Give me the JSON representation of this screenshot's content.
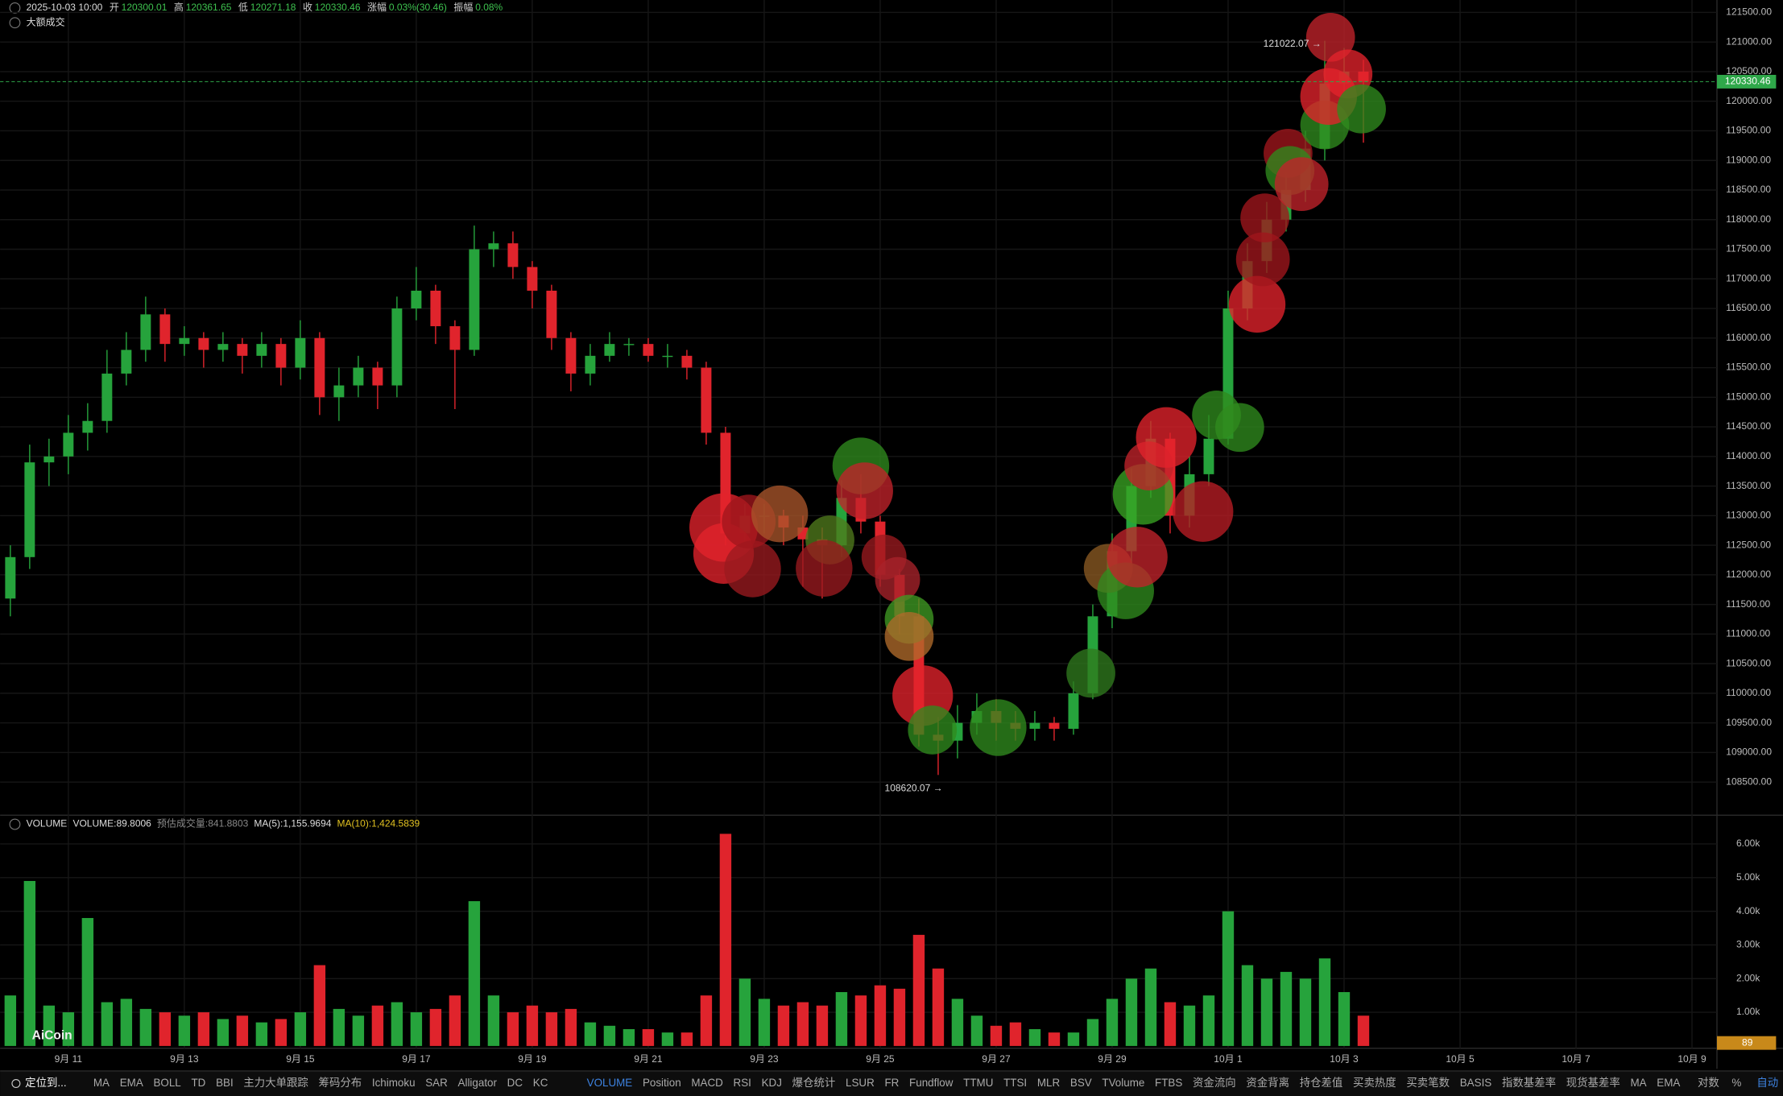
{
  "header": {
    "datetime": "2025-10-03 10:00",
    "fields": [
      {
        "label": "开",
        "value": "120300.01"
      },
      {
        "label": "高",
        "value": "120361.65"
      },
      {
        "label": "低",
        "value": "120271.18"
      },
      {
        "label": "收",
        "value": "120330.46"
      },
      {
        "label": "涨幅",
        "value": "0.03%(30.46)"
      },
      {
        "label": "振幅",
        "value": "0.08%"
      }
    ],
    "overlay": "大额成交"
  },
  "chart_data": [
    {
      "type": "candlestick",
      "open": [
        111600,
        112300,
        113900,
        114000,
        114400,
        114600,
        115400,
        115800,
        116400,
        115900,
        116000,
        115800,
        115900,
        115700,
        115900,
        115500,
        116000,
        115000,
        115200,
        115500,
        115200,
        116500,
        116800,
        116200,
        115800,
        117500,
        117600,
        117200,
        116800,
        116000,
        115400,
        115700,
        115900,
        115900,
        115700,
        115700,
        115500,
        114400,
        112700,
        113000,
        113000,
        112800,
        112600,
        112500,
        113300,
        112900,
        112000,
        111300,
        109300,
        109200,
        109500,
        109700,
        109500,
        109400,
        109500,
        109400,
        110000,
        111300,
        112400,
        113500,
        114300,
        113000,
        113700,
        114300,
        116500,
        117300,
        118000,
        118500,
        119200,
        120300,
        120500
      ],
      "high": [
        112500,
        114200,
        114300,
        114700,
        114900,
        115800,
        116100,
        116700,
        116500,
        116200,
        116100,
        116100,
        116000,
        116100,
        116000,
        116300,
        116100,
        115500,
        115700,
        115600,
        116700,
        117200,
        116900,
        116300,
        117900,
        117800,
        117800,
        117300,
        116900,
        116100,
        115900,
        116100,
        116000,
        116000,
        115900,
        115800,
        115600,
        114500,
        113200,
        113200,
        113100,
        113000,
        112800,
        113600,
        113700,
        113000,
        112100,
        111600,
        109600,
        109800,
        110000,
        109900,
        109700,
        109700,
        109600,
        110200,
        111500,
        112700,
        113800,
        114600,
        114400,
        114000,
        114700,
        116800,
        117600,
        118300,
        118800,
        119500,
        121022.07,
        120900,
        120700
      ],
      "low": [
        111300,
        112100,
        113500,
        113700,
        114100,
        114400,
        115200,
        115600,
        115600,
        115700,
        115500,
        115600,
        115400,
        115500,
        115200,
        115300,
        114700,
        114600,
        115000,
        114800,
        115000,
        116300,
        115900,
        114800,
        115700,
        117200,
        117000,
        116500,
        115800,
        115100,
        115200,
        115600,
        115700,
        115600,
        115500,
        115300,
        114200,
        112500,
        112400,
        112700,
        112500,
        111800,
        111600,
        112300,
        112700,
        111800,
        111000,
        109100,
        108620.07,
        108900,
        109300,
        109200,
        109200,
        109200,
        109200,
        109300,
        109900,
        111100,
        112200,
        113300,
        112700,
        112800,
        113500,
        114200,
        116300,
        117100,
        117800,
        118300,
        119000,
        120100,
        119300
      ],
      "close": [
        112300,
        113900,
        114000,
        114400,
        114600,
        115400,
        115800,
        116400,
        115900,
        116000,
        115800,
        115900,
        115700,
        115900,
        115500,
        116000,
        115000,
        115200,
        115500,
        115200,
        116500,
        116800,
        116200,
        115800,
        117500,
        117600,
        117200,
        116800,
        116000,
        115400,
        115700,
        115900,
        115900,
        115700,
        115700,
        115500,
        114400,
        112700,
        113000,
        113000,
        112800,
        112600,
        112500,
        113300,
        112900,
        112000,
        111300,
        109300,
        109200,
        109500,
        109700,
        109500,
        109400,
        109500,
        109400,
        110000,
        111300,
        112400,
        113500,
        114300,
        113000,
        113700,
        114300,
        116500,
        117300,
        118000,
        118500,
        119200,
        120300,
        120500,
        120330.46
      ],
      "up_color": "#26a33c",
      "down_color": "#e0242c",
      "xlim": [
        -0.53,
        88.29
      ],
      "xticks": [
        {
          "value": 3,
          "label": "9月 11"
        },
        {
          "value": 9,
          "label": "9月 13"
        },
        {
          "value": 15,
          "label": "9月 15"
        },
        {
          "value": 21,
          "label": "9月 17"
        },
        {
          "value": 27,
          "label": "9月 19"
        },
        {
          "value": 33,
          "label": "9月 21"
        },
        {
          "value": 39,
          "label": "9月 23"
        },
        {
          "value": 45,
          "label": "9月 25"
        },
        {
          "value": 51,
          "label": "9月 27"
        },
        {
          "value": 57,
          "label": "9月 29"
        },
        {
          "value": 63,
          "label": "10月 1"
        },
        {
          "value": 69,
          "label": "10月 3"
        },
        {
          "value": 75,
          "label": "10月 5"
        },
        {
          "value": 81,
          "label": "10月 7"
        },
        {
          "value": 87,
          "label": "10月 9"
        }
      ],
      "ylim": [
        107960,
        121710
      ],
      "yticks": [
        {
          "value": 108500,
          "label": "108500.00"
        },
        {
          "value": 109000,
          "label": "109000.00"
        },
        {
          "value": 109500,
          "label": "109500.00"
        },
        {
          "value": 110000,
          "label": "110000.00"
        },
        {
          "value": 110500,
          "label": "110500.00"
        },
        {
          "value": 111000,
          "label": "111000.00"
        },
        {
          "value": 111500,
          "label": "111500.00"
        },
        {
          "value": 112000,
          "label": "112000.00"
        },
        {
          "value": 112500,
          "label": "112500.00"
        },
        {
          "value": 113000,
          "label": "113000.00"
        },
        {
          "value": 113500,
          "label": "113500.00"
        },
        {
          "value": 114000,
          "label": "114000.00"
        },
        {
          "value": 114500,
          "label": "114500.00"
        },
        {
          "value": 115000,
          "label": "115000.00"
        },
        {
          "value": 115500,
          "label": "115500.00"
        },
        {
          "value": 116000,
          "label": "116000.00"
        },
        {
          "value": 116500,
          "label": "116500.00"
        },
        {
          "value": 117000,
          "label": "117000.00"
        },
        {
          "value": 117500,
          "label": "117500.00"
        },
        {
          "value": 118000,
          "label": "118000.00"
        },
        {
          "value": 118500,
          "label": "118500.00"
        },
        {
          "value": 119000,
          "label": "119000.00"
        },
        {
          "value": 119500,
          "label": "119500.00"
        },
        {
          "value": 120000,
          "label": "120000.00"
        },
        {
          "value": 120500,
          "label": "120500.00"
        },
        {
          "value": 121000,
          "label": "121000.00"
        },
        {
          "value": 121500,
          "label": "121500.00"
        }
      ],
      "grid": true,
      "last_price": 120330.46,
      "last_color": "#2fa84a",
      "max_label": "121022.07 →",
      "min_label": "108620.07 →",
      "bubbles": {
        "x": [
          36.9,
          36.9,
          38.4,
          38.2,
          39.8,
          42.4,
          42.1,
          44,
          44.2,
          45.2,
          45.9,
          46.5,
          46.5,
          47.2,
          47.7,
          51.1,
          55.9,
          56.8,
          57.7,
          58.3,
          58.6,
          58.9,
          59.8,
          61.7,
          62.4,
          63.6,
          64.5,
          64.8,
          64.9,
          66.1,
          66.2,
          66.8,
          68,
          68.2,
          68.3,
          69.2,
          69.9
        ],
        "price": [
          112800,
          112360,
          112100,
          112900,
          113030,
          112590,
          112110,
          113840,
          113420,
          112300,
          111920,
          111250,
          110960,
          109960,
          109380,
          109420,
          110340,
          112110,
          111730,
          112300,
          113360,
          113840,
          114320,
          113070,
          114700,
          114490,
          116570,
          117330,
          118030,
          119120,
          118830,
          118600,
          119600,
          120080,
          121080,
          120460,
          119870
        ],
        "size": [
          70,
          62,
          58,
          55,
          58,
          50,
          58,
          58,
          58,
          46,
          46,
          50,
          50,
          62,
          50,
          58,
          50,
          50,
          58,
          62,
          62,
          50,
          62,
          62,
          50,
          50,
          58,
          55,
          50,
          50,
          50,
          55,
          50,
          58,
          50,
          50,
          50
        ],
        "colors": [
          "#e3222c",
          "#e3222c",
          "#9a1a1f",
          "#a0161c",
          "#a8542a",
          "#4f7a1c",
          "#9a1a1f",
          "#2f8a1e",
          "#c2222a",
          "#9a1a1f",
          "#a8222a",
          "#3f9a22",
          "#b06a2a",
          "#e3222c",
          "#2f8a1e",
          "#2f8a1e",
          "#2f7a1e",
          "#8a5a22",
          "#2f8a1e",
          "#c2222a",
          "#39a322",
          "#c2222a",
          "#e3222c",
          "#b81c24",
          "#2f8a1e",
          "#2f8a1e",
          "#e3222c",
          "#a0161c",
          "#a0161c",
          "#a0161c",
          "#2f8a1e",
          "#c2222a",
          "#2f8a1e",
          "#e3222c",
          "#c2222a",
          "#e3222c",
          "#2f8a1e"
        ]
      }
    },
    {
      "type": "bar",
      "title": "VOLUME",
      "fields": [
        "VOLUME:89.8006",
        "预估成交量:841.8803",
        "MA(5):1,155.9694",
        "MA(10):1,424.5839"
      ],
      "values": [
        1500,
        4900,
        1200,
        1000,
        3800,
        1300,
        1400,
        1100,
        1000,
        900,
        1000,
        800,
        900,
        700,
        800,
        1000,
        2400,
        1100,
        900,
        1200,
        1300,
        1000,
        1100,
        1500,
        4300,
        1500,
        1000,
        1200,
        1000,
        1100,
        700,
        600,
        500,
        500,
        400,
        400,
        1500,
        6300,
        2000,
        1400,
        1200,
        1300,
        1200,
        1600,
        1500,
        1800,
        1700,
        3300,
        2300,
        1400,
        900,
        600,
        700,
        500,
        400,
        400,
        800,
        1400,
        2000,
        2300,
        1300,
        1200,
        1500,
        4000,
        2400,
        2000,
        2200,
        2000,
        2600,
        1600,
        900
      ],
      "ylim": [
        0,
        6820
      ],
      "yticks": [
        {
          "value": 1000,
          "label": "1.00k"
        },
        {
          "value": 2000,
          "label": "2.00k"
        },
        {
          "value": 3000,
          "label": "3.00k"
        },
        {
          "value": 4000,
          "label": "4.00k"
        },
        {
          "value": 5000,
          "label": "5.00k"
        },
        {
          "value": 6000,
          "label": "6.00k"
        }
      ],
      "current": 89,
      "current_color": "#c8891a",
      "logo": "AiCoin"
    }
  ],
  "toolbar": {
    "locate": "定位到...",
    "main": [
      "MA",
      "EMA",
      "BOLL",
      "TD",
      "BBI",
      "主力大单跟踪",
      "筹码分布",
      "Ichimoku",
      "SAR",
      "Alligator",
      "DC",
      "KC"
    ],
    "sub": [
      "VOLUME",
      "Position",
      "MACD",
      "RSI",
      "KDJ",
      "爆仓统计",
      "LSUR",
      "FR",
      "Fundflow",
      "TTMU",
      "TTSI",
      "MLR",
      "BSV",
      "TVolume",
      "FTBS",
      "资金流向",
      "资金背离",
      "持仓差值",
      "买卖热度",
      "买卖笔数",
      "BASIS",
      "指数基差率",
      "现货基差率",
      "MA",
      "EMA"
    ],
    "right": [
      "对数",
      "%",
      "自动"
    ]
  }
}
